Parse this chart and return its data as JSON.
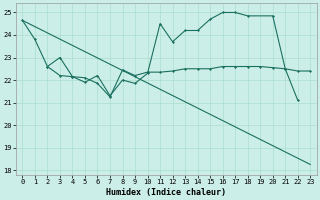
{
  "xlabel": "Humidex (Indice chaleur)",
  "bg_color": "#cceee8",
  "grid_color": "#aaddcc",
  "line_color": "#1a7060",
  "xlim": [
    -0.5,
    23.5
  ],
  "ylim": [
    17.8,
    25.4
  ],
  "yticks": [
    18,
    19,
    20,
    21,
    22,
    23,
    24,
    25
  ],
  "xticks": [
    0,
    1,
    2,
    3,
    4,
    5,
    6,
    7,
    8,
    9,
    10,
    11,
    12,
    13,
    14,
    15,
    16,
    17,
    18,
    19,
    20,
    21,
    22,
    23
  ],
  "line1_x": [
    0,
    1,
    2,
    3,
    4,
    5,
    6,
    7,
    8,
    9,
    10,
    11,
    12,
    13,
    14,
    15,
    16,
    17,
    18,
    20,
    21,
    22
  ],
  "line1_y": [
    24.65,
    23.8,
    22.6,
    22.2,
    22.15,
    21.9,
    22.2,
    21.3,
    22.0,
    21.85,
    22.3,
    24.5,
    23.7,
    24.2,
    24.2,
    24.7,
    25.0,
    25.0,
    24.85,
    24.85,
    22.5,
    21.1
  ],
  "line2_x": [
    2,
    3,
    4,
    5,
    6,
    7,
    8,
    9,
    10,
    11,
    12,
    13,
    14,
    15,
    16,
    17,
    18,
    19,
    20,
    21,
    22,
    23
  ],
  "line2_y": [
    22.6,
    23.0,
    22.15,
    22.1,
    21.85,
    21.25,
    22.45,
    22.2,
    22.35,
    22.35,
    22.4,
    22.5,
    22.5,
    22.5,
    22.6,
    22.6,
    22.6,
    22.6,
    22.55,
    22.5,
    22.4,
    22.4
  ],
  "line3_x": [
    0,
    23
  ],
  "line3_y": [
    24.65,
    18.25
  ]
}
